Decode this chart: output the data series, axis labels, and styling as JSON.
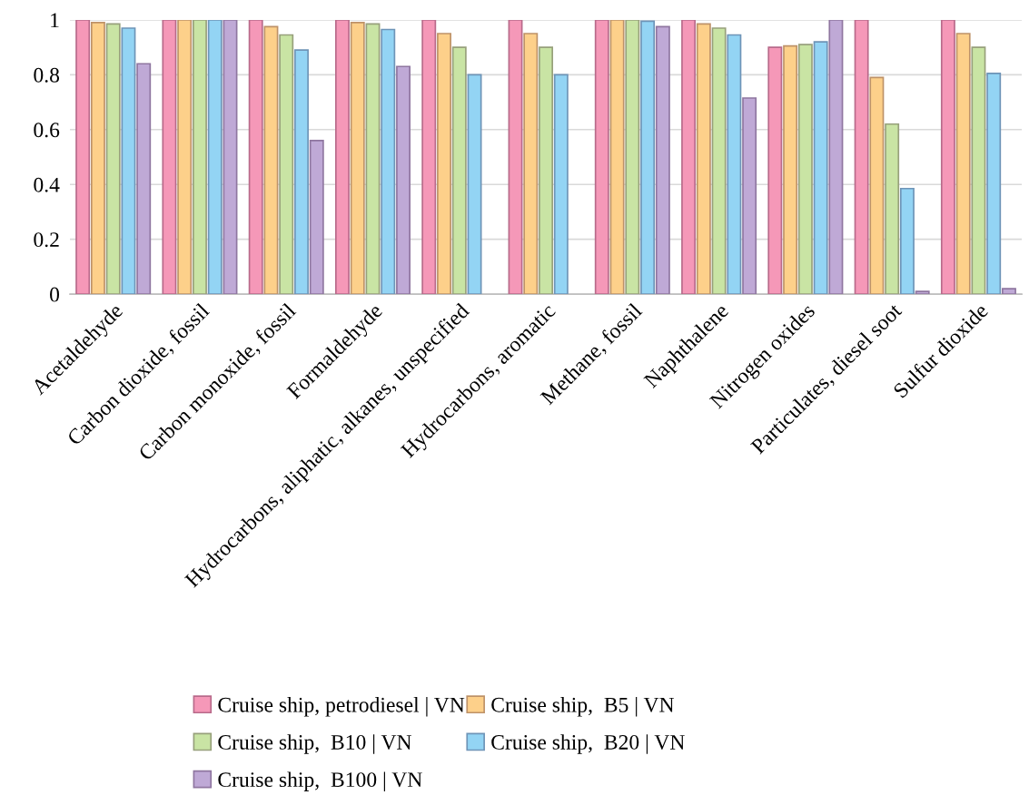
{
  "chart_data": {
    "type": "bar",
    "categories": [
      "Acetaldehyde",
      "Carbon dioxide, fossil",
      "Carbon monoxide, fossil",
      "Formaldehyde",
      "Hydrocarbons, aliphatic, alkanes, unspecified",
      "Hydrocarbons, aromatic",
      "Methane, fossil",
      "Naphthalene",
      "Nitrogen oxides",
      "Particulates, diesel soot",
      "Sulfur dioxide"
    ],
    "series": [
      {
        "name": "Cruise ship, petrodiesel | VN",
        "color": "#f598b8",
        "values": [
          1,
          1,
          1,
          1,
          1,
          1,
          1,
          1,
          0.9,
          1,
          1
        ]
      },
      {
        "name": "Cruise ship,  B5 | VN",
        "color": "#fdd08a",
        "values": [
          0.99,
          1,
          0.975,
          0.99,
          0.95,
          0.95,
          1,
          0.985,
          0.905,
          0.79,
          0.95
        ]
      },
      {
        "name": "Cruise ship,  B10 | VN",
        "color": "#c9e4a4",
        "values": [
          0.985,
          1,
          0.945,
          0.985,
          0.9,
          0.9,
          1,
          0.97,
          0.91,
          0.62,
          0.9
        ]
      },
      {
        "name": "Cruise ship,  B20 | VN",
        "color": "#93d4f4",
        "values": [
          0.97,
          1,
          0.89,
          0.965,
          0.8,
          0.8,
          0.995,
          0.945,
          0.92,
          0.385,
          0.805
        ]
      },
      {
        "name": "Cruise ship,  B100 | VN",
        "color": "#bfa9d6",
        "values": [
          0.84,
          1,
          0.56,
          0.83,
          null,
          null,
          0.975,
          0.715,
          1,
          0.01,
          0.02
        ]
      }
    ],
    "ylim": [
      0,
      1
    ],
    "yticks": [
      0,
      0.2,
      0.4,
      0.6,
      0.8,
      1
    ],
    "grid": "y",
    "legend": "bottom"
  }
}
